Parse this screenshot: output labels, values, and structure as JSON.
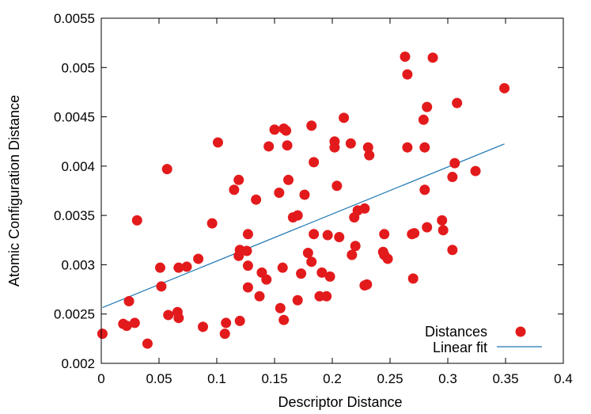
{
  "chart_data": {
    "type": "scatter",
    "title": "",
    "xlabel": "Descriptor Distance",
    "ylabel": "Atomic Configuration Distance",
    "xlim": [
      0,
      0.4
    ],
    "ylim": [
      0.002,
      0.0055
    ],
    "xticks": [
      "0",
      "0.05",
      "0.1",
      "0.15",
      "0.2",
      "0.25",
      "0.3",
      "0.35",
      "0.4"
    ],
    "yticks": [
      "0.002",
      "0.0025",
      "0.003",
      "0.0035",
      "0.004",
      "0.0045",
      "0.005",
      "0.0055"
    ],
    "grid": false,
    "legend": {
      "position": "bottom-right"
    },
    "colors": {
      "points": "#e31a1c",
      "line": "#1f78b4"
    },
    "series": [
      {
        "name": "Distances",
        "kind": "points",
        "points": [
          [
            0.001,
            0.0023
          ],
          [
            0.019,
            0.0024
          ],
          [
            0.022,
            0.00238
          ],
          [
            0.024,
            0.00263
          ],
          [
            0.029,
            0.00241
          ],
          [
            0.031,
            0.00345
          ],
          [
            0.04,
            0.0022
          ],
          [
            0.051,
            0.00297
          ],
          [
            0.052,
            0.00278
          ],
          [
            0.057,
            0.00397
          ],
          [
            0.058,
            0.00249
          ],
          [
            0.066,
            0.00252
          ],
          [
            0.067,
            0.00297
          ],
          [
            0.067,
            0.00246
          ],
          [
            0.074,
            0.00298
          ],
          [
            0.084,
            0.00306
          ],
          [
            0.088,
            0.00237
          ],
          [
            0.096,
            0.00342
          ],
          [
            0.101,
            0.00424
          ],
          [
            0.107,
            0.0023
          ],
          [
            0.108,
            0.00241
          ],
          [
            0.115,
            0.00376
          ],
          [
            0.119,
            0.00386
          ],
          [
            0.119,
            0.00309
          ],
          [
            0.12,
            0.00315
          ],
          [
            0.12,
            0.00243
          ],
          [
            0.126,
            0.00314
          ],
          [
            0.127,
            0.00331
          ],
          [
            0.127,
            0.00299
          ],
          [
            0.127,
            0.00277
          ],
          [
            0.134,
            0.00366
          ],
          [
            0.137,
            0.00268
          ],
          [
            0.139,
            0.00292
          ],
          [
            0.143,
            0.00285
          ],
          [
            0.145,
            0.0042
          ],
          [
            0.15,
            0.00437
          ],
          [
            0.154,
            0.00373
          ],
          [
            0.155,
            0.00256
          ],
          [
            0.157,
            0.00297
          ],
          [
            0.158,
            0.00244
          ],
          [
            0.158,
            0.00438
          ],
          [
            0.16,
            0.00436
          ],
          [
            0.161,
            0.00421
          ],
          [
            0.162,
            0.00386
          ],
          [
            0.166,
            0.00348
          ],
          [
            0.17,
            0.0035
          ],
          [
            0.17,
            0.00264
          ],
          [
            0.173,
            0.00291
          ],
          [
            0.176,
            0.00371
          ],
          [
            0.179,
            0.00312
          ],
          [
            0.182,
            0.00441
          ],
          [
            0.182,
            0.00303
          ],
          [
            0.184,
            0.00331
          ],
          [
            0.184,
            0.00404
          ],
          [
            0.189,
            0.00268
          ],
          [
            0.191,
            0.00292
          ],
          [
            0.195,
            0.00268
          ],
          [
            0.196,
            0.0033
          ],
          [
            0.198,
            0.00288
          ],
          [
            0.202,
            0.00425
          ],
          [
            0.202,
            0.00419
          ],
          [
            0.204,
            0.0038
          ],
          [
            0.206,
            0.00328
          ],
          [
            0.21,
            0.00449
          ],
          [
            0.216,
            0.00423
          ],
          [
            0.217,
            0.0031
          ],
          [
            0.219,
            0.00348
          ],
          [
            0.22,
            0.00319
          ],
          [
            0.222,
            0.00355
          ],
          [
            0.228,
            0.00357
          ],
          [
            0.228,
            0.00279
          ],
          [
            0.23,
            0.0028
          ],
          [
            0.231,
            0.00419
          ],
          [
            0.232,
            0.00411
          ],
          [
            0.244,
            0.00313
          ],
          [
            0.245,
            0.0031
          ],
          [
            0.245,
            0.00331
          ],
          [
            0.248,
            0.00306
          ],
          [
            0.263,
            0.00511
          ],
          [
            0.265,
            0.00493
          ],
          [
            0.265,
            0.00419
          ],
          [
            0.269,
            0.00331
          ],
          [
            0.27,
            0.00286
          ],
          [
            0.271,
            0.00332
          ],
          [
            0.279,
            0.00447
          ],
          [
            0.28,
            0.00419
          ],
          [
            0.28,
            0.00376
          ],
          [
            0.282,
            0.0046
          ],
          [
            0.282,
            0.00338
          ],
          [
            0.287,
            0.0051
          ],
          [
            0.295,
            0.00345
          ],
          [
            0.296,
            0.00335
          ],
          [
            0.304,
            0.00389
          ],
          [
            0.304,
            0.00315
          ],
          [
            0.306,
            0.00403
          ],
          [
            0.308,
            0.00464
          ],
          [
            0.324,
            0.00395
          ],
          [
            0.349,
            0.00479
          ]
        ]
      },
      {
        "name": "Linear fit",
        "kind": "line",
        "x": [
          0.001,
          0.349
        ],
        "y": [
          0.002565,
          0.004225
        ]
      }
    ]
  }
}
